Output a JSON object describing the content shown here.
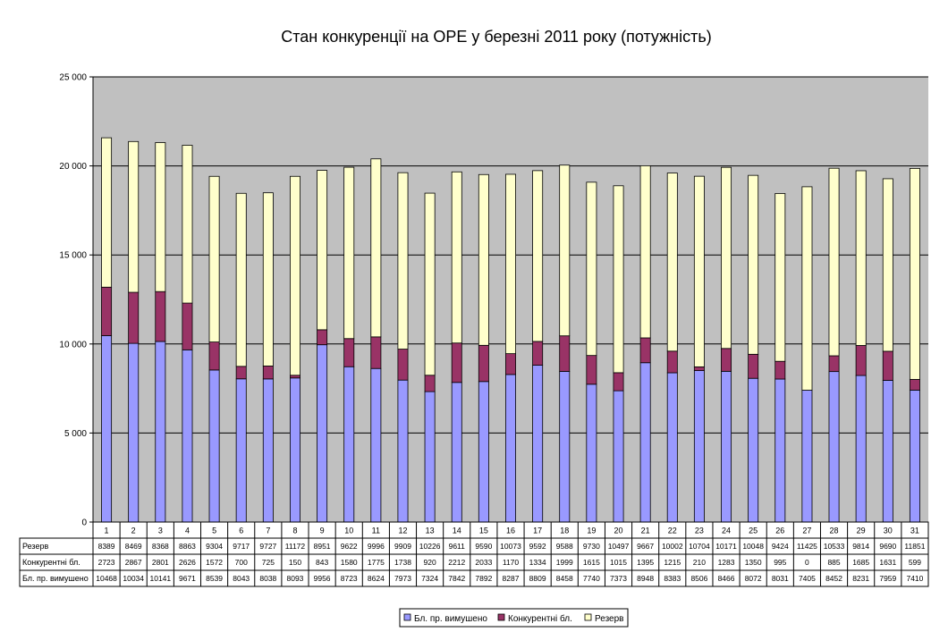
{
  "chart_data": {
    "type": "bar",
    "stacked": true,
    "title": "Стан конкуренції на ОРЕ  у березні 2011 року (потужність)",
    "xlabel": "",
    "ylabel": "",
    "ylim": [
      0,
      25000
    ],
    "yticks": [
      "0",
      "5 000",
      "10 000",
      "15 000",
      "20 000",
      "25 000"
    ],
    "yticks_values": [
      0,
      5000,
      10000,
      15000,
      20000,
      25000
    ],
    "grid": true,
    "legend_position": "bottom",
    "categories": [
      "1",
      "2",
      "3",
      "4",
      "5",
      "6",
      "7",
      "8",
      "9",
      "10",
      "11",
      "12",
      "13",
      "14",
      "15",
      "16",
      "17",
      "18",
      "19",
      "20",
      "21",
      "22",
      "23",
      "24",
      "25",
      "26",
      "27",
      "28",
      "29",
      "30",
      "31"
    ],
    "series": [
      {
        "name": "Бл. пр. вимушено",
        "color": "#9999ff",
        "values": [
          10468,
          10034,
          10141,
          9671,
          8539,
          8043,
          8038,
          8093,
          9956,
          8723,
          8624,
          7973,
          7324,
          7842,
          7892,
          8287,
          8809,
          8458,
          7740,
          7373,
          8948,
          8383,
          8506,
          8466,
          8072,
          8031,
          7405,
          8452,
          8231,
          7959,
          7410
        ]
      },
      {
        "name": "Конкурентні бл.",
        "color": "#993366",
        "values": [
          2723,
          2867,
          2801,
          2626,
          1572,
          700,
          725,
          150,
          843,
          1580,
          1775,
          1738,
          920,
          2212,
          2033,
          1170,
          1334,
          1999,
          1615,
          1015,
          1395,
          1215,
          210,
          1283,
          1350,
          995,
          0,
          885,
          1685,
          1631,
          599
        ]
      },
      {
        "name": "Резерв",
        "color": "#ffffcc",
        "values": [
          8389,
          8469,
          8368,
          8863,
          9304,
          9717,
          9727,
          11172,
          8951,
          9622,
          9996,
          9909,
          10226,
          9611,
          9590,
          10073,
          9592,
          9588,
          9730,
          10497,
          9667,
          10002,
          10704,
          10171,
          10048,
          9424,
          11425,
          10533,
          9814,
          9690,
          11851
        ]
      }
    ],
    "table_row_order": [
      2,
      1,
      0
    ],
    "plot_background": "#c0c0c0"
  }
}
